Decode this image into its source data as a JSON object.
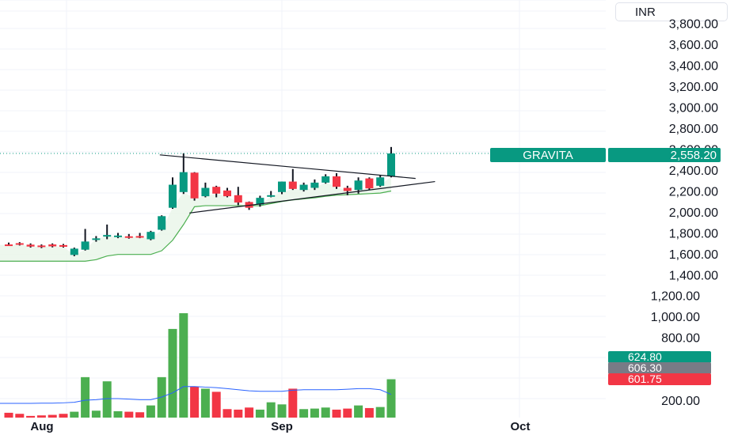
{
  "currency": "INR",
  "price_label": {
    "symbol": "GRAVITA",
    "price": "2,558.20",
    "color": "#089981"
  },
  "volume_labels": [
    {
      "text": "624.80",
      "color": "#089981"
    },
    {
      "text": "606.30",
      "color": "#787b86"
    },
    {
      "text": "601.75",
      "color": "#f23645"
    }
  ],
  "colors": {
    "up": "#089981",
    "down": "#f23645",
    "vol_up": "#4caf50",
    "vol_down": "#f23645",
    "band": "#4caf50",
    "volume_ma": "#2962ff",
    "price_line": "#089981"
  },
  "chart_data": {
    "type": "candlestick",
    "price_axis": {
      "ticks": [
        1400,
        1600,
        1800,
        2000,
        2200,
        2400,
        2600,
        2800,
        3000,
        3200,
        3400,
        3600,
        3800
      ],
      "labels": [
        "1,400.00",
        "1,600.00",
        "1,800.00",
        "2,000.00",
        "2,200.00",
        "2,400.00",
        "2,600.00",
        "2,800.00",
        "3,000.00",
        "3,200.00",
        "3,400.00",
        "3,600.00",
        "3,800.00"
      ]
    },
    "lower_axis": {
      "ticks": [
        200,
        800,
        1000,
        1200
      ],
      "labels": [
        "200.00",
        "800.00",
        "1,000.00",
        "1,200.00"
      ]
    },
    "x_axis": {
      "labels": [
        "Aug",
        "Sep",
        "Oct"
      ]
    },
    "candles": [
      {
        "o": 1690,
        "h": 1708,
        "l": 1676,
        "c": 1685
      },
      {
        "o": 1702,
        "h": 1712,
        "l": 1680,
        "c": 1690
      },
      {
        "o": 1688,
        "h": 1700,
        "l": 1660,
        "c": 1670
      },
      {
        "o": 1680,
        "h": 1690,
        "l": 1655,
        "c": 1668
      },
      {
        "o": 1690,
        "h": 1700,
        "l": 1662,
        "c": 1672
      },
      {
        "o": 1684,
        "h": 1695,
        "l": 1660,
        "c": 1668
      },
      {
        "o": 1590,
        "h": 1660,
        "l": 1578,
        "c": 1650
      },
      {
        "o": 1640,
        "h": 1838,
        "l": 1632,
        "c": 1718
      },
      {
        "o": 1745,
        "h": 1770,
        "l": 1716,
        "c": 1748
      },
      {
        "o": 1765,
        "h": 1880,
        "l": 1740,
        "c": 1780
      },
      {
        "o": 1770,
        "h": 1800,
        "l": 1750,
        "c": 1775
      },
      {
        "o": 1768,
        "h": 1790,
        "l": 1745,
        "c": 1760
      },
      {
        "o": 1770,
        "h": 1800,
        "l": 1750,
        "c": 1765
      },
      {
        "o": 1740,
        "h": 1820,
        "l": 1730,
        "c": 1810
      },
      {
        "o": 1830,
        "h": 1968,
        "l": 1822,
        "c": 1960
      },
      {
        "o": 2040,
        "h": 2330,
        "l": 2030,
        "c": 2260
      },
      {
        "o": 2190,
        "h": 2560,
        "l": 2172,
        "c": 2380
      },
      {
        "o": 2375,
        "h": 2380,
        "l": 2108,
        "c": 2130
      },
      {
        "o": 2150,
        "h": 2280,
        "l": 2140,
        "c": 2230
      },
      {
        "o": 2240,
        "h": 2250,
        "l": 2140,
        "c": 2175
      },
      {
        "o": 2205,
        "h": 2230,
        "l": 2140,
        "c": 2150
      },
      {
        "o": 2160,
        "h": 2240,
        "l": 2065,
        "c": 2090
      },
      {
        "o": 2095,
        "h": 2100,
        "l": 2020,
        "c": 2040
      },
      {
        "o": 2070,
        "h": 2155,
        "l": 2050,
        "c": 2135
      },
      {
        "o": 2145,
        "h": 2200,
        "l": 2140,
        "c": 2160
      },
      {
        "o": 2190,
        "h": 2290,
        "l": 2170,
        "c": 2290
      },
      {
        "o": 2290,
        "h": 2410,
        "l": 2210,
        "c": 2220
      },
      {
        "o": 2210,
        "h": 2280,
        "l": 2195,
        "c": 2260
      },
      {
        "o": 2230,
        "h": 2310,
        "l": 2210,
        "c": 2280
      },
      {
        "o": 2280,
        "h": 2360,
        "l": 2270,
        "c": 2340
      },
      {
        "o": 2340,
        "h": 2370,
        "l": 2220,
        "c": 2240
      },
      {
        "o": 2230,
        "h": 2250,
        "l": 2160,
        "c": 2200
      },
      {
        "o": 2210,
        "h": 2330,
        "l": 2175,
        "c": 2300
      },
      {
        "o": 2320,
        "h": 2330,
        "l": 2210,
        "c": 2225
      },
      {
        "o": 2250,
        "h": 2350,
        "l": 2240,
        "c": 2330
      },
      {
        "o": 2340,
        "h": 2620,
        "l": 2330,
        "c": 2558
      }
    ],
    "volumes": [
      80,
      70,
      50,
      55,
      60,
      70,
      90,
      420,
      100,
      380,
      95,
      90,
      85,
      150,
      420,
      880,
      1030,
      330,
      310,
      280,
      115,
      110,
      130,
      110,
      180,
      160,
      310,
      115,
      120,
      130,
      110,
      120,
      150,
      125,
      135,
      400
    ],
    "volume_ma": [
      170,
      170,
      170,
      172,
      172,
      175,
      180,
      200,
      205,
      215,
      215,
      210,
      205,
      205,
      230,
      270,
      330,
      330,
      325,
      320,
      310,
      300,
      290,
      285,
      285,
      285,
      295,
      300,
      300,
      300,
      300,
      305,
      310,
      310,
      300,
      255
    ],
    "band_lower": [
      1530,
      1530,
      1530,
      1530,
      1530,
      1530,
      1530,
      1530,
      1545,
      1580,
      1595,
      1595,
      1595,
      1595,
      1630,
      1730,
      1880,
      2050,
      2060,
      2060,
      2060,
      2060,
      2060,
      2060,
      2080,
      2100,
      2115,
      2125,
      2135,
      2150,
      2160,
      2165,
      2170,
      2175,
      2180,
      2200
    ],
    "triangle": {
      "upper": {
        "from": {
          "i": 16,
          "p": 2560
        },
        "to": {
          "i": 36,
          "p": 2320
        }
      },
      "lower": {
        "from": {
          "i": 19,
          "p": 1960
        },
        "to": {
          "i": 38,
          "p": 2290
        }
      }
    },
    "last_price": 2558.2
  }
}
